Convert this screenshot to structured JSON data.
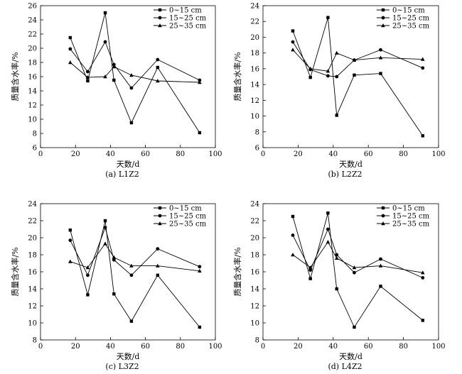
{
  "chart_data": [
    {
      "type": "line",
      "caption": "(a) L1Z2",
      "xlabel": "天数/d",
      "ylabel": "质量含水率/%",
      "xlim": [
        0,
        100
      ],
      "ylim": [
        6,
        26
      ],
      "xticks": [
        0,
        20,
        40,
        60,
        80,
        100
      ],
      "yticks": [
        6,
        8,
        10,
        12,
        14,
        16,
        18,
        20,
        22,
        24,
        26
      ],
      "x": [
        17,
        27,
        37,
        42,
        52,
        67,
        91
      ],
      "series": [
        {
          "name": "0~15 cm",
          "marker": "square",
          "values": [
            21.5,
            15.4,
            25.0,
            15.5,
            9.5,
            17.3,
            8.1
          ]
        },
        {
          "name": "15~25 cm",
          "marker": "circle",
          "values": [
            19.9,
            16.7,
            20.9,
            17.7,
            14.4,
            18.4,
            15.5
          ]
        },
        {
          "name": "25~35 cm",
          "marker": "triangle",
          "values": [
            18.0,
            15.9,
            16.0,
            17.4,
            16.2,
            15.4,
            15.2
          ]
        }
      ],
      "legend": "top-right"
    },
    {
      "type": "line",
      "caption": "(b) L2Z2",
      "xlabel": "天数/d",
      "ylabel": "质量含水率/%",
      "xlim": [
        0,
        100
      ],
      "ylim": [
        6,
        24
      ],
      "xticks": [
        0,
        20,
        40,
        60,
        80,
        100
      ],
      "yticks": [
        6,
        8,
        10,
        12,
        14,
        16,
        18,
        20,
        22,
        24
      ],
      "x": [
        17,
        27,
        37,
        42,
        52,
        67,
        91
      ],
      "series": [
        {
          "name": "0~15 cm",
          "marker": "square",
          "values": [
            20.8,
            14.9,
            22.5,
            10.1,
            15.2,
            15.4,
            7.5
          ]
        },
        {
          "name": "15~25 cm",
          "marker": "circle",
          "values": [
            19.4,
            15.9,
            15.1,
            15.0,
            17.1,
            18.4,
            16.1
          ]
        },
        {
          "name": "25~35 cm",
          "marker": "triangle",
          "values": [
            18.4,
            16.0,
            15.7,
            18.0,
            17.1,
            17.4,
            17.2
          ]
        }
      ],
      "legend": "top-right"
    },
    {
      "type": "line",
      "caption": "(c) L3Z2",
      "xlabel": "天数/d",
      "ylabel": "质量含水率/%",
      "xlim": [
        0,
        100
      ],
      "ylim": [
        8,
        24
      ],
      "xticks": [
        0,
        20,
        40,
        60,
        80,
        100
      ],
      "yticks": [
        8,
        10,
        12,
        14,
        16,
        18,
        20,
        22,
        24
      ],
      "x": [
        17,
        27,
        37,
        42,
        52,
        67,
        91
      ],
      "series": [
        {
          "name": "0~15 cm",
          "marker": "square",
          "values": [
            20.9,
            13.3,
            22.0,
            13.4,
            10.2,
            15.6,
            9.5
          ]
        },
        {
          "name": "15~25 cm",
          "marker": "circle",
          "values": [
            19.7,
            15.6,
            21.2,
            17.4,
            15.6,
            18.7,
            16.6
          ]
        },
        {
          "name": "25~35 cm",
          "marker": "triangle",
          "values": [
            17.2,
            16.5,
            19.3,
            17.7,
            16.7,
            16.7,
            16.1
          ]
        }
      ],
      "legend": "top-right"
    },
    {
      "type": "line",
      "caption": "(d) L4Z2",
      "xlabel": "天数/d",
      "ylabel": "质量含水率/%",
      "xlim": [
        0,
        100
      ],
      "ylim": [
        8,
        24
      ],
      "xticks": [
        0,
        20,
        40,
        60,
        80,
        100
      ],
      "yticks": [
        8,
        10,
        12,
        14,
        16,
        18,
        20,
        22,
        24
      ],
      "x": [
        17,
        27,
        37,
        42,
        52,
        67,
        91
      ],
      "series": [
        {
          "name": "0~15 cm",
          "marker": "square",
          "values": [
            22.5,
            15.2,
            22.9,
            14.0,
            9.5,
            14.3,
            10.3
          ]
        },
        {
          "name": "15~25 cm",
          "marker": "circle",
          "values": [
            20.3,
            16.2,
            21.0,
            18.0,
            15.9,
            17.5,
            15.3
          ]
        },
        {
          "name": "25~35 cm",
          "marker": "triangle",
          "values": [
            18.0,
            16.5,
            19.5,
            17.6,
            16.5,
            16.7,
            15.9
          ]
        }
      ],
      "legend": "top-right"
    }
  ]
}
